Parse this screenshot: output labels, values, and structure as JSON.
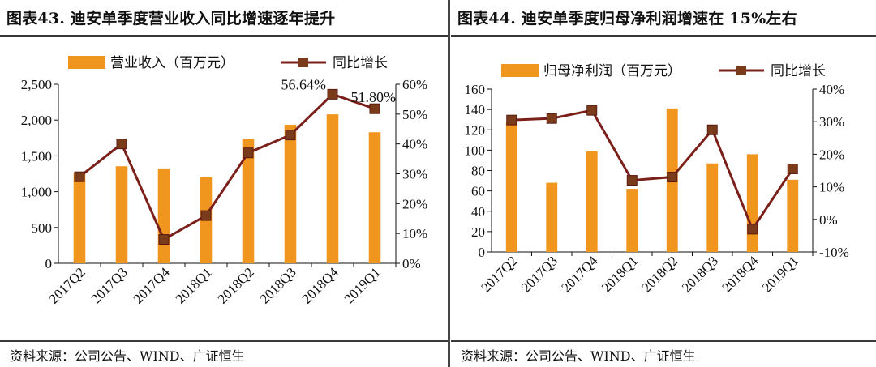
{
  "left": {
    "title": "图表43.  迪安单季度营业收入同比增速逐年提升",
    "source": "资料来源：公司公告、WIND、广证恒生",
    "chart_data": {
      "type": "bar",
      "categories": [
        "2017Q2",
        "2017Q3",
        "2017Q4",
        "2018Q1",
        "2018Q2",
        "2018Q3",
        "2018Q4",
        "2019Q1"
      ],
      "series": [
        {
          "name": "营业收入（百万元）",
          "type": "bar",
          "axis": "left",
          "color": "#F0961E",
          "values": [
            1260,
            1355,
            1325,
            1200,
            1735,
            1935,
            2080,
            1830
          ]
        },
        {
          "name": "同比增长",
          "type": "line",
          "axis": "right",
          "color": "#7B1F1A",
          "values": [
            0.29,
            0.4,
            0.08,
            0.16,
            0.37,
            0.43,
            0.5664,
            0.518
          ]
        }
      ],
      "ylim": [
        0,
        2500
      ],
      "y_ticks": [
        "0",
        "500",
        "1,000",
        "1,500",
        "2,000",
        "2,500"
      ],
      "y2lim": [
        0,
        0.6
      ],
      "y2_ticks": [
        "0%",
        "10%",
        "20%",
        "30%",
        "40%",
        "50%",
        "60%"
      ],
      "annotations": [
        "56.64%",
        "51.80%"
      ],
      "legend_position": "top"
    }
  },
  "right": {
    "title": "图表44.  迪安单季度归母净利润增速在 15%左右",
    "source": "资料来源：公司公告、WIND、广证恒生",
    "chart_data": {
      "type": "bar",
      "categories": [
        "2017Q2",
        "2017Q3",
        "2017Q4",
        "2018Q1",
        "2018Q2",
        "2018Q3",
        "2018Q4",
        "2019Q1"
      ],
      "series": [
        {
          "name": "归母净利润（百万元）",
          "type": "bar",
          "axis": "left",
          "color": "#F0961E",
          "values": [
            128,
            68,
            99,
            62,
            141,
            87,
            96,
            71
          ]
        },
        {
          "name": "同比增长",
          "type": "line",
          "axis": "right",
          "color": "#7B1F1A",
          "values": [
            0.305,
            0.31,
            0.335,
            0.12,
            0.13,
            0.275,
            -0.03,
            0.155
          ]
        }
      ],
      "ylim": [
        0,
        160
      ],
      "y_ticks": [
        "0",
        "20",
        "40",
        "60",
        "80",
        "100",
        "120",
        "140",
        "160"
      ],
      "y2lim": [
        -0.1,
        0.4
      ],
      "y2_ticks": [
        "-10%",
        "0%",
        "10%",
        "20%",
        "30%",
        "40%"
      ],
      "legend_position": "top"
    }
  }
}
